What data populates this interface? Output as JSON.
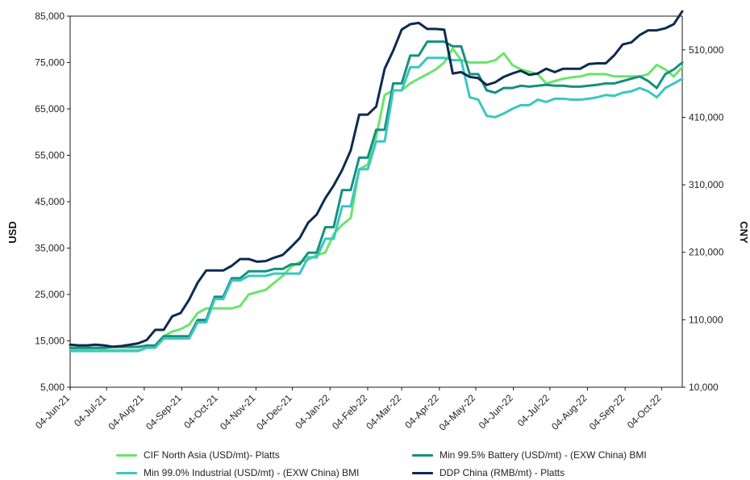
{
  "chart_data": {
    "type": "line",
    "x": [
      "04-Jun-21",
      "11-Jun-21",
      "18-Jun-21",
      "25-Jun-21",
      "02-Jul-21",
      "09-Jul-21",
      "16-Jul-21",
      "23-Jul-21",
      "30-Jul-21",
      "06-Aug-21",
      "13-Aug-21",
      "20-Aug-21",
      "27-Aug-21",
      "03-Sep-21",
      "10-Sep-21",
      "17-Sep-21",
      "24-Sep-21",
      "01-Oct-21",
      "08-Oct-21",
      "15-Oct-21",
      "22-Oct-21",
      "29-Oct-21",
      "05-Nov-21",
      "12-Nov-21",
      "19-Nov-21",
      "26-Nov-21",
      "03-Dec-21",
      "10-Dec-21",
      "17-Dec-21",
      "24-Dec-21",
      "31-Dec-21",
      "07-Jan-22",
      "14-Jan-22",
      "21-Jan-22",
      "28-Jan-22",
      "04-Feb-22",
      "11-Feb-22",
      "18-Feb-22",
      "25-Feb-22",
      "04-Mar-22",
      "11-Mar-22",
      "18-Mar-22",
      "25-Mar-22",
      "01-Apr-22",
      "08-Apr-22",
      "15-Apr-22",
      "22-Apr-22",
      "29-Apr-22",
      "06-May-22",
      "13-May-22",
      "20-May-22",
      "27-May-22",
      "03-Jun-22",
      "10-Jun-22",
      "17-Jun-22",
      "24-Jun-22",
      "01-Jul-22",
      "08-Jul-22",
      "15-Jul-22",
      "22-Jul-22",
      "29-Jul-22",
      "05-Aug-22",
      "12-Aug-22",
      "19-Aug-22",
      "26-Aug-22",
      "02-Sep-22",
      "09-Sep-22",
      "16-Sep-22",
      "23-Sep-22",
      "30-Sep-22",
      "07-Oct-22",
      "14-Oct-22",
      "21-Oct-22"
    ],
    "x_ticks": [
      "04-Jun-21",
      "04-Jul-21",
      "04-Aug-21",
      "04-Sep-21",
      "04-Oct-21",
      "04-Nov-21",
      "04-Dec-21",
      "04-Jan-22",
      "04-Feb-22",
      "04-Mar-22",
      "04-Apr-22",
      "04-May-22",
      "04-Jun-22",
      "04-Jul-22",
      "04-Aug-22",
      "04-Sep-22",
      "04-Oct-22"
    ],
    "y_left": {
      "label": "USD",
      "min": 5000,
      "max": 85000,
      "ticks": [
        "5,000",
        "15,000",
        "25,000",
        "35,000",
        "45,000",
        "55,000",
        "65,000",
        "75,000",
        "85,000"
      ]
    },
    "y_right": {
      "label": "CNY",
      "min": 10000,
      "max": 560000,
      "ticks": [
        "10,000",
        "110,000",
        "210,000",
        "310,000",
        "410,000",
        "510,000"
      ]
    },
    "grid": false,
    "legend_position": "bottom",
    "series": [
      {
        "name": "CIF North Asia (USD/mt)- Platts",
        "axis": "left",
        "color": "#6CE36C",
        "values": [
          13000,
          13000,
          13000,
          13000,
          13000,
          13000,
          13000,
          13000,
          13000,
          13500,
          14000,
          16000,
          17000,
          17500,
          18500,
          21000,
          22000,
          22000,
          22000,
          22000,
          22500,
          25000,
          25500,
          26000,
          27500,
          29000,
          31000,
          32000,
          32500,
          33500,
          34000,
          38000,
          40000,
          41500,
          52000,
          53000,
          59000,
          68000,
          69000,
          69000,
          70500,
          71500,
          72500,
          73500,
          75000,
          78000,
          75500,
          75000,
          75000,
          75000,
          75500,
          77000,
          74500,
          73500,
          73000,
          72500,
          70500,
          71000,
          71500,
          71800,
          72000,
          72500,
          72500,
          72500,
          72000,
          72000,
          72000,
          72000,
          72500,
          74500,
          73500,
          72000,
          74000
        ]
      },
      {
        "name": "Min 99.5% Battery (USD/mt) - (EXW China) BMI",
        "axis": "left",
        "color": "#16907E",
        "values": [
          13500,
          13500,
          13500,
          13500,
          13500,
          13700,
          13700,
          13700,
          13700,
          14000,
          14000,
          16000,
          16000,
          16000,
          16000,
          19500,
          19500,
          24500,
          24500,
          28500,
          28500,
          30000,
          30000,
          30000,
          30500,
          30500,
          31500,
          31500,
          34000,
          34000,
          39500,
          39500,
          47500,
          47500,
          54500,
          54500,
          60500,
          60500,
          70500,
          70500,
          76500,
          76500,
          79500,
          79500,
          79500,
          78500,
          78500,
          72500,
          72500,
          69000,
          68500,
          69500,
          69500,
          70000,
          69800,
          70000,
          70200,
          70000,
          70000,
          69800,
          69800,
          70000,
          70200,
          70500,
          70500,
          71000,
          71500,
          72000,
          71000,
          69500,
          72500,
          73500,
          75000
        ]
      },
      {
        "name": "Min 99.0% Industrial (USD/mt) - (EXW China) BMI",
        "axis": "left",
        "color": "#3CC6C2",
        "values": [
          12800,
          12800,
          12800,
          12800,
          12800,
          12800,
          12800,
          12800,
          12800,
          13500,
          13500,
          15500,
          15500,
          15500,
          15500,
          19000,
          19000,
          24000,
          24000,
          28000,
          28000,
          29000,
          29000,
          29000,
          29500,
          29500,
          29500,
          29500,
          33000,
          33000,
          37000,
          37000,
          44000,
          44000,
          52000,
          52000,
          58000,
          58000,
          69000,
          69000,
          74000,
          74000,
          76000,
          76000,
          76000,
          75500,
          75500,
          67500,
          67000,
          63500,
          63200,
          64000,
          65000,
          65800,
          65800,
          67000,
          66500,
          67200,
          67200,
          67000,
          67000,
          67200,
          67500,
          68000,
          67800,
          68500,
          68800,
          69500,
          68800,
          67500,
          69500,
          70500,
          71500
        ]
      },
      {
        "name": "DDP China (RMB/mt) - Platts",
        "axis": "right",
        "color": "#0D2B52",
        "values": [
          73000,
          72000,
          72000,
          73000,
          72000,
          70000,
          71000,
          73000,
          75000,
          80000,
          95000,
          95000,
          115000,
          120000,
          140000,
          165000,
          183000,
          183000,
          183000,
          190000,
          200000,
          200000,
          196000,
          197000,
          202000,
          206000,
          218000,
          231000,
          254000,
          266000,
          290000,
          309000,
          332000,
          361000,
          414000,
          414000,
          426000,
          482000,
          509000,
          540000,
          548000,
          550000,
          541000,
          541000,
          540000,
          475000,
          477000,
          470000,
          468000,
          458000,
          462000,
          470000,
          475000,
          479000,
          473000,
          475000,
          482000,
          477000,
          482000,
          482000,
          482000,
          489000,
          490000,
          490000,
          502000,
          518000,
          521000,
          532000,
          539000,
          539000,
          542000,
          548000,
          567000
        ]
      }
    ]
  }
}
